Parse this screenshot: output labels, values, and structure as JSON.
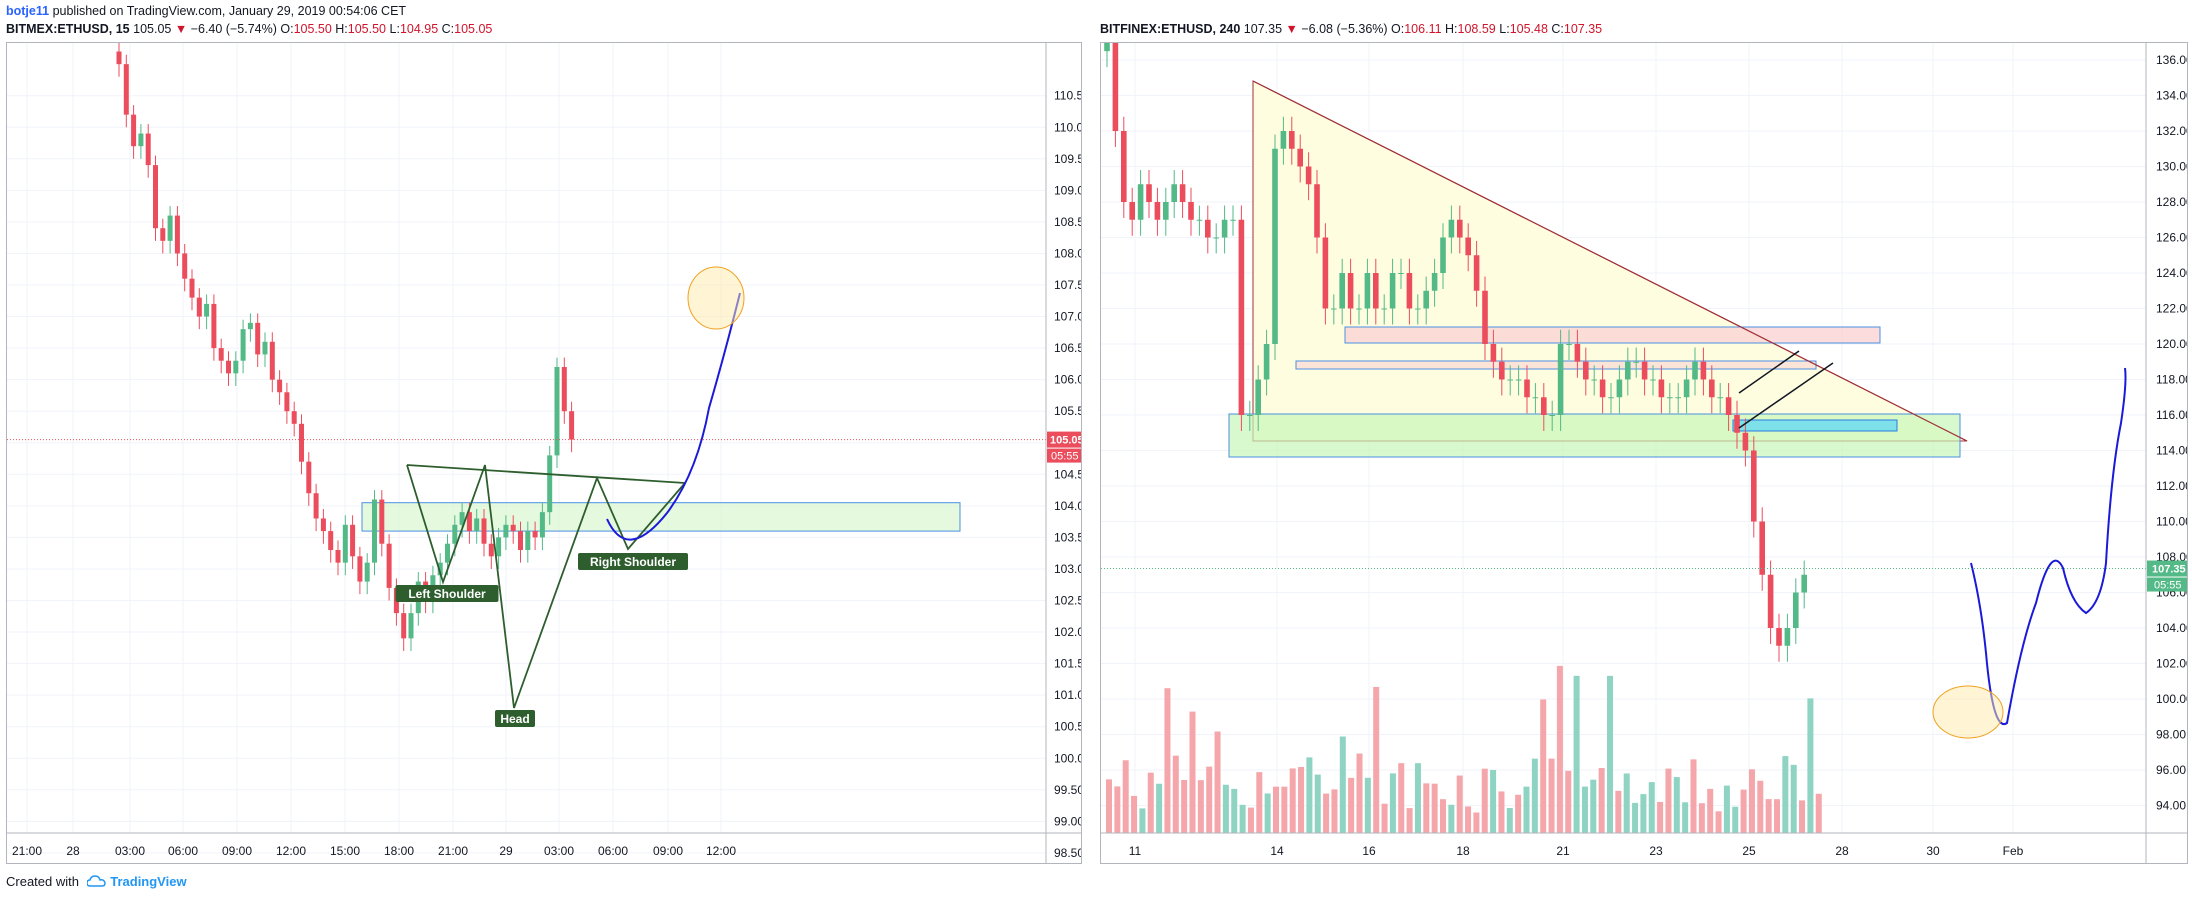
{
  "header": {
    "user": "botje11",
    "published": "published on TradingView.com, January 29, 2019 00:54:06 CET"
  },
  "footer": {
    "created_with": "Created with",
    "brand": "TradingView"
  },
  "colors": {
    "up": "#53b987",
    "down": "#eb4d5c",
    "accent": "#2962ff",
    "volume_up": "#8fd3c3",
    "volume_down": "#f4a6aa"
  },
  "chart_data": [
    {
      "type": "candlestick",
      "symbol": "BITMEX:ETHUSD, 15",
      "last": "105.05",
      "change": "−6.40 (−5.74%)",
      "open_label": "O:",
      "open": "105.50",
      "high_label": "H:",
      "high": "105.50",
      "low_label": "L:",
      "low": "104.95",
      "close_label": "C:",
      "close": "105.05",
      "price_tag": "105.05",
      "countdown": "05:55",
      "ylim": [
        98.2,
        111.0
      ],
      "y_ticks": [
        "110.50",
        "110.00",
        "109.50",
        "109.00",
        "108.50",
        "108.00",
        "107.50",
        "107.00",
        "106.50",
        "106.00",
        "105.50",
        "105.00",
        "104.50",
        "104.00",
        "103.50",
        "103.00",
        "102.50",
        "102.00",
        "101.50",
        "101.00",
        "100.50",
        "100.00",
        "99.50",
        "99.00",
        "98.50"
      ],
      "x_ticks": [
        "21:00",
        "28",
        "03:00",
        "06:00",
        "09:00",
        "12:00",
        "15:00",
        "18:00",
        "21:00",
        "29",
        "03:00",
        "06:00",
        "09:00",
        "12:00"
      ],
      "annotations": [
        "Left Shoulder",
        "Head",
        "Right Shoulder"
      ],
      "zone": [
        103.6,
        104.05
      ]
    },
    {
      "type": "candlestick",
      "symbol": "BITFINEX:ETHUSD, 240",
      "last": "107.35",
      "change": "−6.08 (−5.36%)",
      "open_label": "O:",
      "open": "106.11",
      "high_label": "H:",
      "high": "108.59",
      "low_label": "L:",
      "low": "105.48",
      "close_label": "C:",
      "close": "107.35",
      "price_tag": "107.35",
      "countdown": "05:55",
      "ylim": [
        92.6,
        137.8
      ],
      "y_ticks": [
        "136.00",
        "134.00",
        "132.00",
        "130.00",
        "128.00",
        "126.00",
        "124.00",
        "122.00",
        "120.00",
        "118.00",
        "116.00",
        "114.00",
        "112.00",
        "110.00",
        "108.00",
        "106.00",
        "104.00",
        "102.00",
        "100.00",
        "98.00",
        "96.00",
        "94.00"
      ],
      "x_ticks": [
        "11",
        "14",
        "16",
        "18",
        "21",
        "23",
        "25",
        "28",
        "30",
        "Feb"
      ]
    }
  ]
}
